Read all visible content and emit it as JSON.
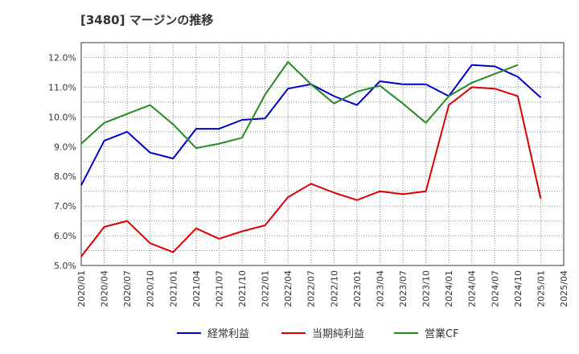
{
  "title": "[3480]  マージンの推移",
  "chart_data": {
    "type": "line",
    "title": "[3480]  マージンの推移",
    "xlabel": "",
    "ylabel": "",
    "ylim": [
      5.0,
      12.5
    ],
    "y_ticks": [
      "5.0%",
      "6.0%",
      "7.0%",
      "8.0%",
      "9.0%",
      "10.0%",
      "11.0%",
      "12.0%"
    ],
    "y_tick_values": [
      5.0,
      6.0,
      7.0,
      8.0,
      9.0,
      10.0,
      11.0,
      12.0
    ],
    "x": [
      "2020/01",
      "2020/04",
      "2020/07",
      "2020/10",
      "2021/01",
      "2021/04",
      "2021/07",
      "2021/10",
      "2022/01",
      "2022/04",
      "2022/07",
      "2022/10",
      "2023/01",
      "2023/04",
      "2023/07",
      "2023/10",
      "2024/01",
      "2024/04",
      "2024/07",
      "2024/10",
      "2025/01",
      "2025/04"
    ],
    "grid": true,
    "legend_position": "bottom",
    "series": [
      {
        "name": "経常利益",
        "color": "#0000cc",
        "values": [
          7.7,
          9.2,
          9.5,
          8.8,
          8.6,
          9.6,
          9.6,
          9.9,
          9.95,
          10.95,
          11.1,
          10.7,
          10.4,
          11.2,
          11.1,
          11.1,
          10.7,
          11.75,
          11.7,
          11.35,
          10.65,
          null
        ]
      },
      {
        "name": "当期純利益",
        "color": "#dd0000",
        "values": [
          5.3,
          6.3,
          6.5,
          5.75,
          5.45,
          6.25,
          5.9,
          6.15,
          6.35,
          7.3,
          7.75,
          7.45,
          7.2,
          7.5,
          7.4,
          7.5,
          10.4,
          11.0,
          10.95,
          10.7,
          7.25,
          null
        ]
      },
      {
        "name": "営業CF",
        "color": "#228b22",
        "values": [
          9.1,
          9.8,
          10.1,
          10.4,
          9.75,
          8.95,
          9.1,
          9.3,
          10.75,
          11.85,
          11.1,
          10.45,
          10.85,
          11.05,
          10.45,
          9.8,
          10.7,
          11.15,
          11.45,
          11.75,
          null,
          null
        ]
      }
    ]
  }
}
